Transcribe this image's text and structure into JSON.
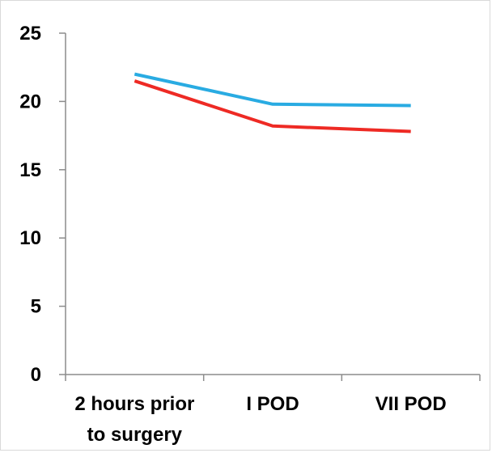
{
  "chart_data": {
    "type": "line",
    "categories": [
      "2 hours prior to surgery",
      "I POD",
      "VII POD"
    ],
    "category_lines": [
      [
        "2 hours prior",
        "to surgery"
      ],
      [
        "I POD"
      ],
      [
        "VII POD"
      ]
    ],
    "series": [
      {
        "values": [
          22.0,
          19.8,
          19.7
        ],
        "color": "#29abe2"
      },
      {
        "values": [
          21.5,
          18.2,
          17.8
        ],
        "color": "#ee2a24"
      }
    ],
    "ylim": [
      0,
      25
    ],
    "yticks": [
      0,
      5,
      10,
      15,
      20,
      25
    ],
    "title": "",
    "xlabel": "",
    "ylabel": "",
    "grid": false,
    "legend": "none"
  }
}
